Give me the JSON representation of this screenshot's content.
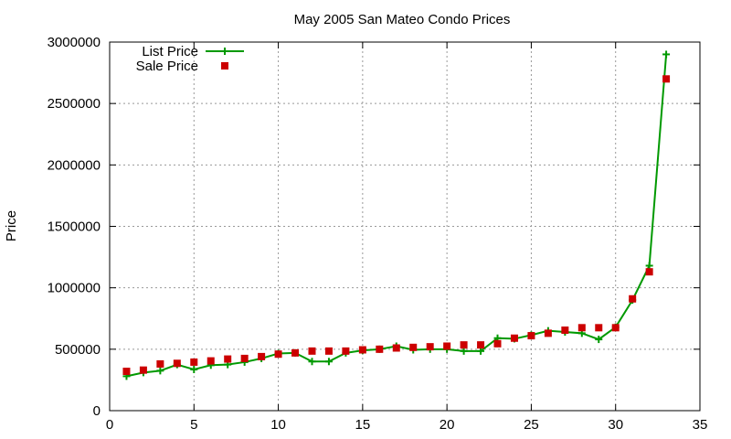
{
  "chart_data": {
    "type": "line",
    "title": "May 2005 San Mateo Condo Prices",
    "xlabel": "",
    "ylabel": "Price",
    "xlim": [
      0,
      35
    ],
    "ylim": [
      0,
      3000000
    ],
    "xticks": [
      0,
      5,
      10,
      15,
      20,
      25,
      30,
      35
    ],
    "yticks": [
      0,
      500000,
      1000000,
      1500000,
      2000000,
      2500000,
      3000000
    ],
    "grid": true,
    "legend_position": "top-left",
    "x": [
      1,
      2,
      3,
      4,
      5,
      6,
      7,
      8,
      9,
      10,
      11,
      12,
      13,
      14,
      15,
      16,
      17,
      18,
      19,
      20,
      21,
      22,
      23,
      24,
      25,
      26,
      27,
      28,
      29,
      30,
      31,
      32,
      33
    ],
    "series": [
      {
        "name": "List Price",
        "style": "line-with-plus-markers",
        "color": "#009900",
        "values": [
          280000,
          310000,
          325000,
          375000,
          335000,
          370000,
          375000,
          395000,
          425000,
          465000,
          470000,
          400000,
          400000,
          470000,
          490000,
          500000,
          525000,
          495000,
          500000,
          500000,
          485000,
          485000,
          590000,
          585000,
          615000,
          650000,
          640000,
          630000,
          580000,
          680000,
          900000,
          1180000,
          2900000
        ]
      },
      {
        "name": "Sale Price",
        "style": "square-markers",
        "color": "#cc0000",
        "values": [
          320000,
          330000,
          380000,
          385000,
          395000,
          405000,
          420000,
          425000,
          440000,
          460000,
          470000,
          485000,
          485000,
          485000,
          495000,
          500000,
          510000,
          515000,
          520000,
          525000,
          535000,
          535000,
          545000,
          590000,
          610000,
          630000,
          655000,
          675000,
          675000,
          675000,
          910000,
          1130000,
          2700000
        ]
      }
    ]
  }
}
